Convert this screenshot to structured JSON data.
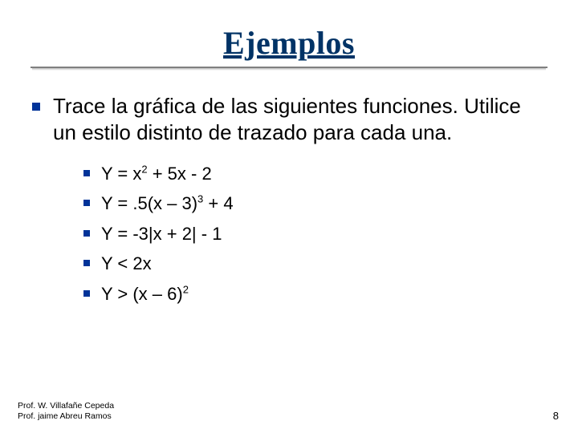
{
  "colors": {
    "title_color": "#003366",
    "bullet_color": "#003399",
    "background": "#ffffff",
    "text_color": "#000000",
    "rule_color": "#808080"
  },
  "typography": {
    "title_font": "Comic Sans MS",
    "body_font": "Verdana",
    "title_size_pt": 40,
    "body_size_pt": 26,
    "sub_size_pt": 22,
    "footer_size_pt": 10.5,
    "pagenum_size_pt": 13
  },
  "title": "Ejemplos",
  "main_bullet": "Trace la gráfica de las siguientes funciones. Utilice un estilo distinto de trazado para cada una.",
  "equations": [
    {
      "pre": "Y = x",
      "sup1": "2",
      "mid": " + 5x - 2",
      "sup2": "",
      "post": ""
    },
    {
      "pre": "Y = .5(x – 3)",
      "sup1": "3",
      "mid": " + 4",
      "sup2": "",
      "post": ""
    },
    {
      "pre": "Y = -3|x + 2| - 1",
      "sup1": "",
      "mid": "",
      "sup2": "",
      "post": ""
    },
    {
      "pre": "Y < 2x",
      "sup1": "",
      "mid": "",
      "sup2": "",
      "post": ""
    },
    {
      "pre": "Y > (x – 6)",
      "sup1": "2",
      "mid": "",
      "sup2": "",
      "post": ""
    }
  ],
  "footer": {
    "author1": "Prof. W. Villafañe Cepeda",
    "author2": "Prof. jaime Abreu Ramos",
    "page_number": "8"
  }
}
